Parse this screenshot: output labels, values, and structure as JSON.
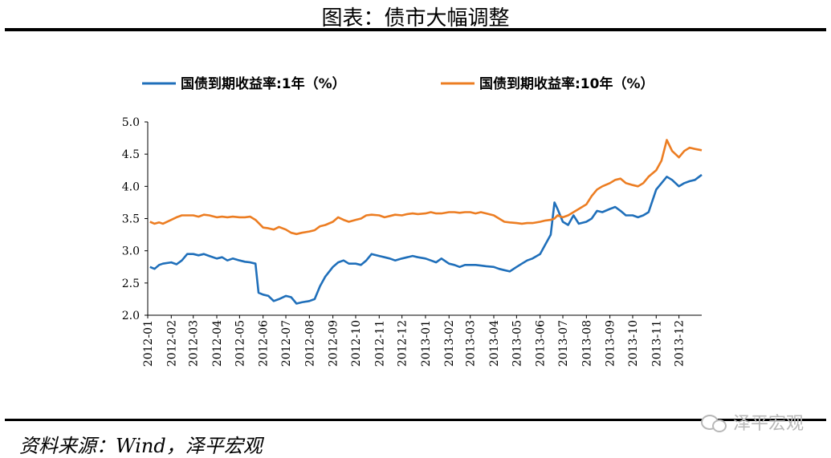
{
  "page": {
    "title": "图表：债市大幅调整",
    "source": "资料来源：Wind，泽平宏观",
    "watermark": "泽平宏观"
  },
  "chart_data": {
    "type": "line",
    "title": "",
    "xlabel": "",
    "ylabel": "",
    "ylim": [
      2.0,
      5.0
    ],
    "yticks": [
      "2.0",
      "2.5",
      "3.0",
      "3.5",
      "4.0",
      "4.5",
      "5.0"
    ],
    "grid": false,
    "legend_position": "top",
    "x_tick_labels": [
      "2012-01",
      "2012-02",
      "2012-03",
      "2012-04",
      "2012-05",
      "2012-06",
      "2012-07",
      "2012-08",
      "2012-09",
      "2012-10",
      "2012-11",
      "2012-12",
      "2013-01",
      "2013-02",
      "2013-03",
      "2013-04",
      "2013-05",
      "2013-06",
      "2013-07",
      "2013-08",
      "2013-09",
      "2013-10",
      "2013-11",
      "2013-12"
    ],
    "series": [
      {
        "name": "国债到期收益率:1年（%）",
        "color": "#1f6fba",
        "points": [
          [
            "2012-01-04",
            2.75
          ],
          [
            "2012-01-10",
            2.72
          ],
          [
            "2012-01-16",
            2.78
          ],
          [
            "2012-01-21",
            2.8
          ],
          [
            "2012-02-01",
            2.82
          ],
          [
            "2012-02-08",
            2.79
          ],
          [
            "2012-02-15",
            2.85
          ],
          [
            "2012-02-22",
            2.95
          ],
          [
            "2012-03-01",
            2.95
          ],
          [
            "2012-03-08",
            2.93
          ],
          [
            "2012-03-15",
            2.95
          ],
          [
            "2012-03-22",
            2.92
          ],
          [
            "2012-04-01",
            2.88
          ],
          [
            "2012-04-08",
            2.9
          ],
          [
            "2012-04-15",
            2.85
          ],
          [
            "2012-04-22",
            2.88
          ],
          [
            "2012-05-01",
            2.85
          ],
          [
            "2012-05-08",
            2.83
          ],
          [
            "2012-05-15",
            2.82
          ],
          [
            "2012-05-22",
            2.8
          ],
          [
            "2012-05-26",
            2.35
          ],
          [
            "2012-06-01",
            2.32
          ],
          [
            "2012-06-08",
            2.3
          ],
          [
            "2012-06-15",
            2.22
          ],
          [
            "2012-06-22",
            2.25
          ],
          [
            "2012-07-01",
            2.3
          ],
          [
            "2012-07-08",
            2.28
          ],
          [
            "2012-07-15",
            2.18
          ],
          [
            "2012-07-22",
            2.2
          ],
          [
            "2012-08-01",
            2.22
          ],
          [
            "2012-08-08",
            2.25
          ],
          [
            "2012-08-15",
            2.45
          ],
          [
            "2012-08-22",
            2.6
          ],
          [
            "2012-09-01",
            2.75
          ],
          [
            "2012-09-08",
            2.82
          ],
          [
            "2012-09-15",
            2.85
          ],
          [
            "2012-09-22",
            2.8
          ],
          [
            "2012-10-01",
            2.8
          ],
          [
            "2012-10-08",
            2.78
          ],
          [
            "2012-10-15",
            2.85
          ],
          [
            "2012-10-22",
            2.95
          ],
          [
            "2012-11-01",
            2.92
          ],
          [
            "2012-11-08",
            2.9
          ],
          [
            "2012-11-15",
            2.88
          ],
          [
            "2012-11-22",
            2.85
          ],
          [
            "2012-12-01",
            2.88
          ],
          [
            "2012-12-08",
            2.9
          ],
          [
            "2012-12-15",
            2.92
          ],
          [
            "2012-12-22",
            2.9
          ],
          [
            "2013-01-01",
            2.88
          ],
          [
            "2013-01-08",
            2.85
          ],
          [
            "2013-01-15",
            2.82
          ],
          [
            "2013-01-22",
            2.88
          ],
          [
            "2013-02-01",
            2.8
          ],
          [
            "2013-02-08",
            2.78
          ],
          [
            "2013-02-15",
            2.75
          ],
          [
            "2013-02-22",
            2.78
          ],
          [
            "2013-03-01",
            2.78
          ],
          [
            "2013-03-08",
            2.78
          ],
          [
            "2013-03-15",
            2.77
          ],
          [
            "2013-03-22",
            2.76
          ],
          [
            "2013-04-01",
            2.75
          ],
          [
            "2013-04-08",
            2.72
          ],
          [
            "2013-04-15",
            2.7
          ],
          [
            "2013-04-22",
            2.68
          ],
          [
            "2013-05-01",
            2.75
          ],
          [
            "2013-05-08",
            2.8
          ],
          [
            "2013-05-15",
            2.85
          ],
          [
            "2013-05-22",
            2.88
          ],
          [
            "2013-06-01",
            2.95
          ],
          [
            "2013-06-08",
            3.1
          ],
          [
            "2013-06-15",
            3.25
          ],
          [
            "2013-06-20",
            3.75
          ],
          [
            "2013-06-24",
            3.65
          ],
          [
            "2013-07-01",
            3.45
          ],
          [
            "2013-07-08",
            3.4
          ],
          [
            "2013-07-15",
            3.55
          ],
          [
            "2013-07-22",
            3.42
          ],
          [
            "2013-08-01",
            3.45
          ],
          [
            "2013-08-08",
            3.5
          ],
          [
            "2013-08-15",
            3.62
          ],
          [
            "2013-08-22",
            3.6
          ],
          [
            "2013-09-01",
            3.65
          ],
          [
            "2013-09-08",
            3.68
          ],
          [
            "2013-09-15",
            3.62
          ],
          [
            "2013-09-22",
            3.55
          ],
          [
            "2013-10-01",
            3.55
          ],
          [
            "2013-10-08",
            3.52
          ],
          [
            "2013-10-15",
            3.55
          ],
          [
            "2013-10-22",
            3.6
          ],
          [
            "2013-11-01",
            3.95
          ],
          [
            "2013-11-08",
            4.05
          ],
          [
            "2013-11-15",
            4.15
          ],
          [
            "2013-11-22",
            4.1
          ],
          [
            "2013-12-01",
            4.0
          ],
          [
            "2013-12-08",
            4.05
          ],
          [
            "2013-12-15",
            4.08
          ],
          [
            "2013-12-22",
            4.1
          ],
          [
            "2013-12-31",
            4.18
          ]
        ]
      },
      {
        "name": "国债到期收益率:10年（%）",
        "color": "#ec7d22",
        "points": [
          [
            "2012-01-04",
            3.45
          ],
          [
            "2012-01-10",
            3.42
          ],
          [
            "2012-01-16",
            3.44
          ],
          [
            "2012-01-21",
            3.42
          ],
          [
            "2012-02-01",
            3.48
          ],
          [
            "2012-02-08",
            3.52
          ],
          [
            "2012-02-15",
            3.55
          ],
          [
            "2012-02-22",
            3.55
          ],
          [
            "2012-03-01",
            3.55
          ],
          [
            "2012-03-08",
            3.53
          ],
          [
            "2012-03-15",
            3.56
          ],
          [
            "2012-03-22",
            3.55
          ],
          [
            "2012-04-01",
            3.52
          ],
          [
            "2012-04-08",
            3.53
          ],
          [
            "2012-04-15",
            3.52
          ],
          [
            "2012-04-22",
            3.53
          ],
          [
            "2012-05-01",
            3.52
          ],
          [
            "2012-05-08",
            3.52
          ],
          [
            "2012-05-15",
            3.53
          ],
          [
            "2012-05-22",
            3.48
          ],
          [
            "2012-06-01",
            3.36
          ],
          [
            "2012-06-08",
            3.35
          ],
          [
            "2012-06-15",
            3.33
          ],
          [
            "2012-06-22",
            3.37
          ],
          [
            "2012-07-01",
            3.33
          ],
          [
            "2012-07-08",
            3.28
          ],
          [
            "2012-07-15",
            3.26
          ],
          [
            "2012-07-22",
            3.28
          ],
          [
            "2012-08-01",
            3.3
          ],
          [
            "2012-08-08",
            3.32
          ],
          [
            "2012-08-15",
            3.38
          ],
          [
            "2012-08-22",
            3.4
          ],
          [
            "2012-09-01",
            3.45
          ],
          [
            "2012-09-08",
            3.52
          ],
          [
            "2012-09-15",
            3.48
          ],
          [
            "2012-09-22",
            3.45
          ],
          [
            "2012-10-01",
            3.48
          ],
          [
            "2012-10-08",
            3.5
          ],
          [
            "2012-10-15",
            3.55
          ],
          [
            "2012-10-22",
            3.56
          ],
          [
            "2012-11-01",
            3.55
          ],
          [
            "2012-11-08",
            3.52
          ],
          [
            "2012-11-15",
            3.54
          ],
          [
            "2012-11-22",
            3.56
          ],
          [
            "2012-12-01",
            3.55
          ],
          [
            "2012-12-08",
            3.57
          ],
          [
            "2012-12-15",
            3.58
          ],
          [
            "2012-12-22",
            3.57
          ],
          [
            "2013-01-01",
            3.58
          ],
          [
            "2013-01-08",
            3.6
          ],
          [
            "2013-01-15",
            3.58
          ],
          [
            "2013-01-22",
            3.58
          ],
          [
            "2013-02-01",
            3.6
          ],
          [
            "2013-02-08",
            3.6
          ],
          [
            "2013-02-15",
            3.59
          ],
          [
            "2013-02-22",
            3.6
          ],
          [
            "2013-03-01",
            3.6
          ],
          [
            "2013-03-08",
            3.58
          ],
          [
            "2013-03-15",
            3.6
          ],
          [
            "2013-03-22",
            3.58
          ],
          [
            "2013-04-01",
            3.55
          ],
          [
            "2013-04-08",
            3.5
          ],
          [
            "2013-04-15",
            3.45
          ],
          [
            "2013-04-22",
            3.44
          ],
          [
            "2013-05-01",
            3.43
          ],
          [
            "2013-05-08",
            3.42
          ],
          [
            "2013-05-15",
            3.43
          ],
          [
            "2013-05-22",
            3.43
          ],
          [
            "2013-06-01",
            3.45
          ],
          [
            "2013-06-08",
            3.47
          ],
          [
            "2013-06-15",
            3.48
          ],
          [
            "2013-06-20",
            3.5
          ],
          [
            "2013-06-24",
            3.55
          ],
          [
            "2013-07-01",
            3.52
          ],
          [
            "2013-07-08",
            3.55
          ],
          [
            "2013-07-15",
            3.6
          ],
          [
            "2013-07-22",
            3.65
          ],
          [
            "2013-08-01",
            3.72
          ],
          [
            "2013-08-08",
            3.85
          ],
          [
            "2013-08-15",
            3.95
          ],
          [
            "2013-08-22",
            4.0
          ],
          [
            "2013-09-01",
            4.05
          ],
          [
            "2013-09-08",
            4.1
          ],
          [
            "2013-09-15",
            4.12
          ],
          [
            "2013-09-22",
            4.05
          ],
          [
            "2013-10-01",
            4.02
          ],
          [
            "2013-10-08",
            4.0
          ],
          [
            "2013-10-15",
            4.05
          ],
          [
            "2013-10-22",
            4.15
          ],
          [
            "2013-11-01",
            4.25
          ],
          [
            "2013-11-08",
            4.4
          ],
          [
            "2013-11-15",
            4.72
          ],
          [
            "2013-11-22",
            4.55
          ],
          [
            "2013-12-01",
            4.45
          ],
          [
            "2013-12-08",
            4.55
          ],
          [
            "2013-12-15",
            4.6
          ],
          [
            "2013-12-22",
            4.58
          ],
          [
            "2013-12-31",
            4.56
          ]
        ]
      }
    ]
  }
}
